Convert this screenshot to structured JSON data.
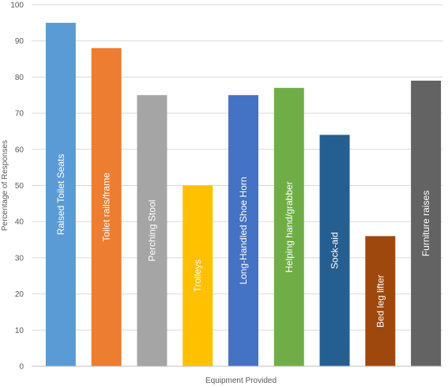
{
  "chart_data": {
    "type": "bar",
    "title": "",
    "xlabel": "Equipment Provided",
    "ylabel": "Percentage of Responses",
    "ylim": [
      0,
      100
    ],
    "yticks": [
      0,
      10,
      20,
      30,
      40,
      50,
      60,
      70,
      80,
      90,
      100
    ],
    "grid": true,
    "legend": "none",
    "categories": [
      "Raised Toilet Seats",
      "Toilet rails/frame",
      "Perching Stool",
      "Trolleys",
      "Long-Handled Shoe Horn",
      "Helping hand/grabber",
      "Sock-aid",
      "Bed leg lifter",
      "Furniture raises"
    ],
    "values": [
      95,
      88,
      75,
      50,
      75,
      77,
      64,
      36,
      79
    ],
    "colors": [
      "#5b9bd5",
      "#ed7d31",
      "#a5a5a5",
      "#ffc000",
      "#4472c4",
      "#70ad47",
      "#255e91",
      "#9e480e",
      "#636363"
    ]
  }
}
